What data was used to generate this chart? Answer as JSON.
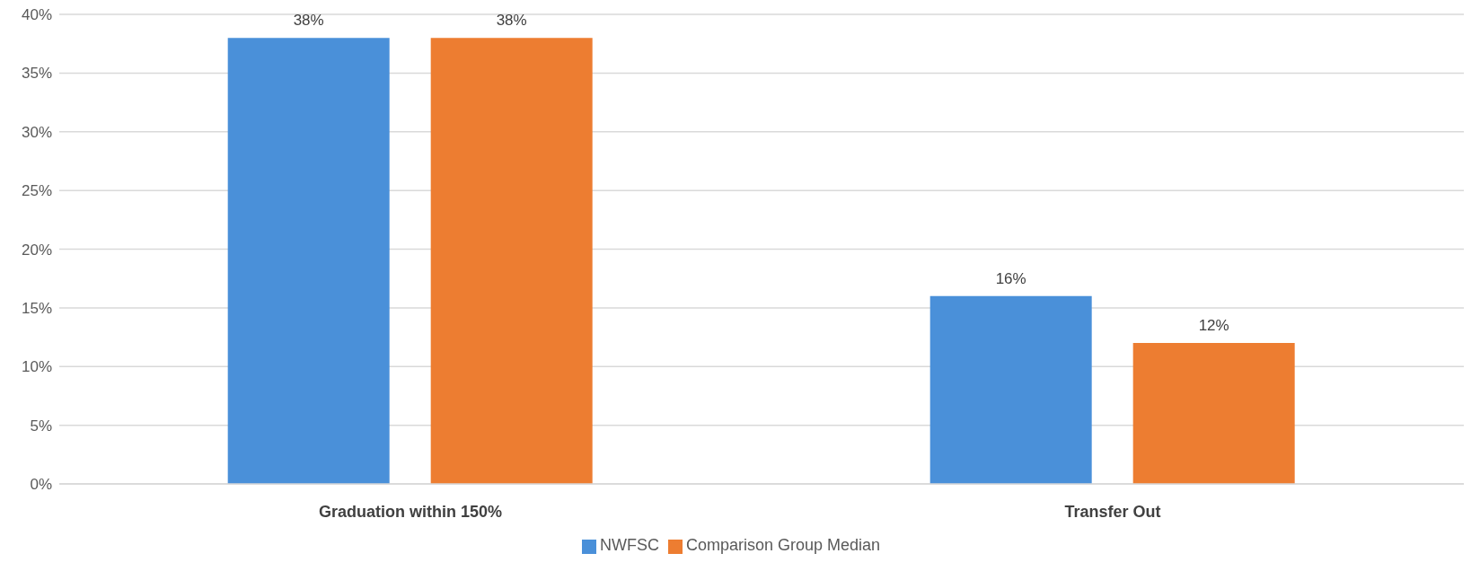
{
  "chart_data": {
    "type": "bar",
    "categories": [
      "Graduation within 150%",
      "Transfer Out"
    ],
    "series": [
      {
        "name": "NWFSC",
        "color": "#4a90d9",
        "values": [
          38,
          16
        ],
        "value_labels": [
          "38%",
          "16%"
        ]
      },
      {
        "name": "Comparison Group Median",
        "color": "#ed7d31",
        "values": [
          38,
          12
        ],
        "value_labels": [
          "38%",
          "12%"
        ]
      }
    ],
    "ylim": [
      0,
      40
    ],
    "yticks": [
      {
        "value": 0,
        "label": "0%"
      },
      {
        "value": 5,
        "label": "5%"
      },
      {
        "value": 10,
        "label": "10%"
      },
      {
        "value": 15,
        "label": "15%"
      },
      {
        "value": 20,
        "label": "20%"
      },
      {
        "value": 25,
        "label": "25%"
      },
      {
        "value": 30,
        "label": "30%"
      },
      {
        "value": 35,
        "label": "35%"
      },
      {
        "value": 40,
        "label": "40%"
      }
    ],
    "grid": "y",
    "legend": "bottom"
  }
}
